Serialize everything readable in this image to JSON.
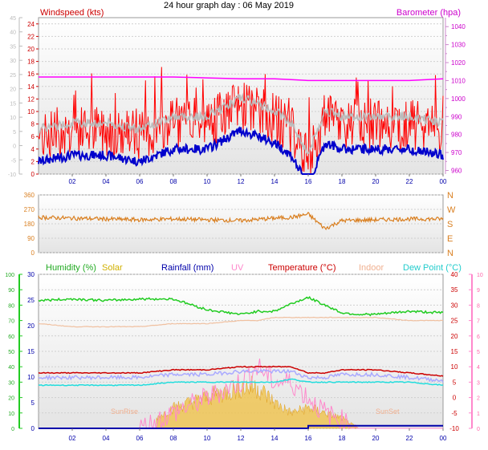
{
  "title": "24 hour graph day : 06 May 2019",
  "panels": {
    "wind": {
      "label_left": "Windspeed (kts)",
      "label_right": "Barometer (hpa)",
      "left_ticks": [
        0,
        2,
        4,
        6,
        8,
        10,
        12,
        14,
        16,
        18,
        20,
        22,
        24
      ],
      "far_left_ticks": [
        -10,
        -5,
        0,
        5,
        10,
        15,
        20,
        25,
        30,
        35,
        40,
        45
      ],
      "right_ticks": [
        960,
        970,
        980,
        990,
        1000,
        1010,
        1020,
        1030,
        1040
      ],
      "right_minor_ticks": [
        965,
        975,
        985,
        995,
        1005,
        1015,
        1025,
        1035
      ]
    },
    "dir": {
      "left_ticks": [
        0,
        90,
        180,
        270,
        360
      ],
      "right_ticks": [
        "N",
        "W",
        "S",
        "E",
        "N"
      ]
    },
    "climate": {
      "legend": {
        "humidity": "Humidity (%)",
        "solar": "Solar",
        "rainfall": "Rainfall (mm)",
        "uv": "UV",
        "temperature": "Temperature (°C)",
        "indoor": "Indoor",
        "dewpoint": "Dew Point (°C)"
      },
      "humidity_ticks": [
        0,
        10,
        20,
        30,
        40,
        50,
        60,
        70,
        80,
        90,
        100
      ],
      "rain_ticks": [
        0,
        5,
        10,
        15,
        20,
        25,
        30
      ],
      "temp_ticks": [
        -10,
        -5,
        0,
        5,
        10,
        15,
        20,
        25,
        30,
        35,
        40
      ],
      "uv_ticks": [
        0,
        1,
        2,
        3,
        4,
        5,
        6,
        7,
        8,
        9,
        10
      ],
      "annotations": {
        "sunrise": "SunRise",
        "sunset": "SunSet"
      }
    }
  },
  "x_ticks": [
    "02",
    "04",
    "06",
    "08",
    "10",
    "12",
    "14",
    "16",
    "18",
    "20",
    "22",
    "00"
  ],
  "colors": {
    "wind_gust": "#ff0000",
    "wind_avg": "#bbbbbb",
    "wind_dir_line": "#0000cc",
    "barometer": "#ff00ff",
    "direction": "#d97f20",
    "humidity": "#22cc22",
    "solar": "#f0c040",
    "rainfall": "#0000aa",
    "uv": "#ff88cc",
    "temperature": "#cc0000",
    "indoor": "#f0c0a0",
    "dewpoint": "#22dddd",
    "apparent": "#aaaaff",
    "axis_tick": "#0000aa"
  },
  "chart_data": [
    {
      "type": "line",
      "title": "24 hour graph day : 06 May 2019",
      "x_hours": [
        0,
        2,
        4,
        6,
        8,
        10,
        12,
        14,
        15,
        16,
        17,
        18,
        20,
        22,
        24
      ],
      "series": [
        {
          "name": "Windspeed (kts)",
          "axis": "left",
          "values": [
            6,
            7,
            7,
            6,
            8,
            8,
            11,
            9,
            7,
            2,
            9,
            8,
            8,
            8,
            7
          ]
        },
        {
          "name": "Barometer (hpa)",
          "axis": "right",
          "values": [
            1012,
            1012,
            1012,
            1012,
            1012,
            1011.5,
            1011,
            1011,
            1010.5,
            1010,
            1010,
            1010,
            1010,
            1010,
            1011
          ]
        }
      ],
      "ylim_left": [
        0,
        25
      ],
      "ylim_right": [
        958,
        1045
      ]
    },
    {
      "type": "line",
      "x_hours": [
        0,
        2,
        4,
        6,
        8,
        10,
        12,
        14,
        15,
        16,
        17,
        18,
        20,
        22,
        24
      ],
      "series": [
        {
          "values": [
            220,
            215,
            210,
            205,
            210,
            205,
            200,
            215,
            220,
            240,
            150,
            200,
            205,
            210,
            210
          ]
        }
      ],
      "ylim": [
        0,
        360
      ]
    },
    {
      "type": "line",
      "x_hours": [
        0,
        2,
        4,
        6,
        8,
        10,
        12,
        13,
        14,
        15,
        16,
        17,
        18,
        19,
        20,
        22,
        24
      ],
      "series": [
        {
          "name": "Humidity (%)",
          "axis": "humidity",
          "values": [
            83,
            84,
            83,
            84,
            84,
            77,
            74,
            76,
            76,
            81,
            85,
            80,
            75,
            74,
            74,
            76,
            75
          ]
        },
        {
          "name": "Temperature (°C)",
          "axis": "temp",
          "values": [
            8,
            8,
            8,
            8,
            9,
            9,
            10,
            10,
            10,
            10,
            8,
            8,
            9,
            9,
            9,
            8,
            7
          ]
        },
        {
          "name": "Dew Point (°C)",
          "axis": "temp",
          "values": [
            4,
            4,
            4,
            4,
            5,
            5,
            5,
            5,
            5,
            6,
            5,
            5,
            5,
            5,
            5,
            5,
            4
          ]
        },
        {
          "name": "Indoor",
          "axis": "temp",
          "values": [
            24,
            23,
            23,
            23,
            24,
            24,
            25,
            25,
            26,
            26,
            26,
            26,
            26,
            26,
            26,
            25,
            25
          ]
        },
        {
          "name": "Solar",
          "axis": "rain",
          "values": [
            0,
            0,
            0,
            0,
            4,
            6,
            8,
            8,
            5,
            3,
            4,
            3,
            2,
            0,
            0,
            0,
            0
          ]
        },
        {
          "name": "UV",
          "axis": "uv",
          "values": [
            0,
            0,
            0,
            0,
            1,
            2,
            3,
            4,
            3,
            3,
            2,
            1,
            0.5,
            0,
            0,
            0,
            0
          ]
        },
        {
          "name": "Rainfall (mm)",
          "axis": "rain",
          "values": [
            0,
            0,
            0,
            0,
            0,
            0,
            0,
            0,
            0,
            0,
            0.5,
            0.5,
            0.5,
            0.5,
            0.5,
            0.5,
            0.5
          ]
        }
      ],
      "ylim_humidity": [
        0,
        100
      ],
      "ylim_temp": [
        -10,
        40
      ],
      "ylim_uv": [
        0,
        10
      ],
      "ylim_rain": [
        0,
        30
      ]
    }
  ]
}
